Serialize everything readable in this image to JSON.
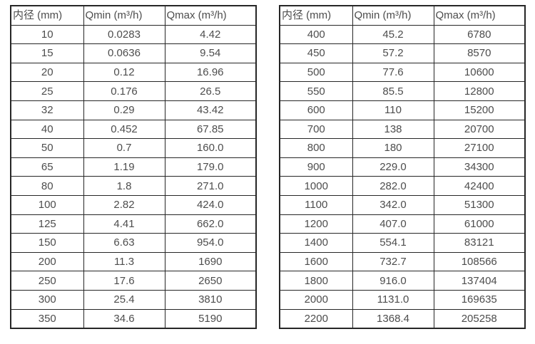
{
  "colors": {
    "background": "#ffffff",
    "border": "#262626",
    "text": "#4d4d4d"
  },
  "tables": [
    {
      "name": "small-diameters-flow-table",
      "headers": [
        "内径 (mm)",
        "Qmin (m³/h)",
        "Qmax (m³/h)"
      ],
      "rows": [
        [
          "10",
          "0.0283",
          "4.42"
        ],
        [
          "15",
          "0.0636",
          "9.54"
        ],
        [
          "20",
          "0.12",
          "16.96"
        ],
        [
          "25",
          "0.176",
          "26.5"
        ],
        [
          "32",
          "0.29",
          "43.42"
        ],
        [
          "40",
          "0.452",
          "67.85"
        ],
        [
          "50",
          "0.7",
          "160.0"
        ],
        [
          "65",
          "1.19",
          "179.0"
        ],
        [
          "80",
          "1.8",
          "271.0"
        ],
        [
          "100",
          "2.82",
          "424.0"
        ],
        [
          "125",
          "4.41",
          "662.0"
        ],
        [
          "150",
          "6.63",
          "954.0"
        ],
        [
          "200",
          "11.3",
          "1690"
        ],
        [
          "250",
          "17.6",
          "2650"
        ],
        [
          "300",
          "25.4",
          "3810"
        ],
        [
          "350",
          "34.6",
          "5190"
        ]
      ]
    },
    {
      "name": "large-diameters-flow-table",
      "headers": [
        "内径 (mm)",
        "Qmin (m³/h)",
        "Qmax (m³/h)"
      ],
      "rows": [
        [
          "400",
          "45.2",
          "6780"
        ],
        [
          "450",
          "57.2",
          "8570"
        ],
        [
          "500",
          "77.6",
          "10600"
        ],
        [
          "550",
          "85.5",
          "12800"
        ],
        [
          "600",
          "110",
          "15200"
        ],
        [
          "700",
          "138",
          "20700"
        ],
        [
          "800",
          "180",
          "27100"
        ],
        [
          "900",
          "229.0",
          "34300"
        ],
        [
          "1000",
          "282.0",
          "42400"
        ],
        [
          "1100",
          "342.0",
          "51300"
        ],
        [
          "1200",
          "407.0",
          "61000"
        ],
        [
          "1400",
          "554.1",
          "83121"
        ],
        [
          "1600",
          "732.7",
          "108566"
        ],
        [
          "1800",
          "916.0",
          "137404"
        ],
        [
          "2000",
          "1131.0",
          "169635"
        ],
        [
          "2200",
          "1368.4",
          "205258"
        ]
      ]
    }
  ]
}
